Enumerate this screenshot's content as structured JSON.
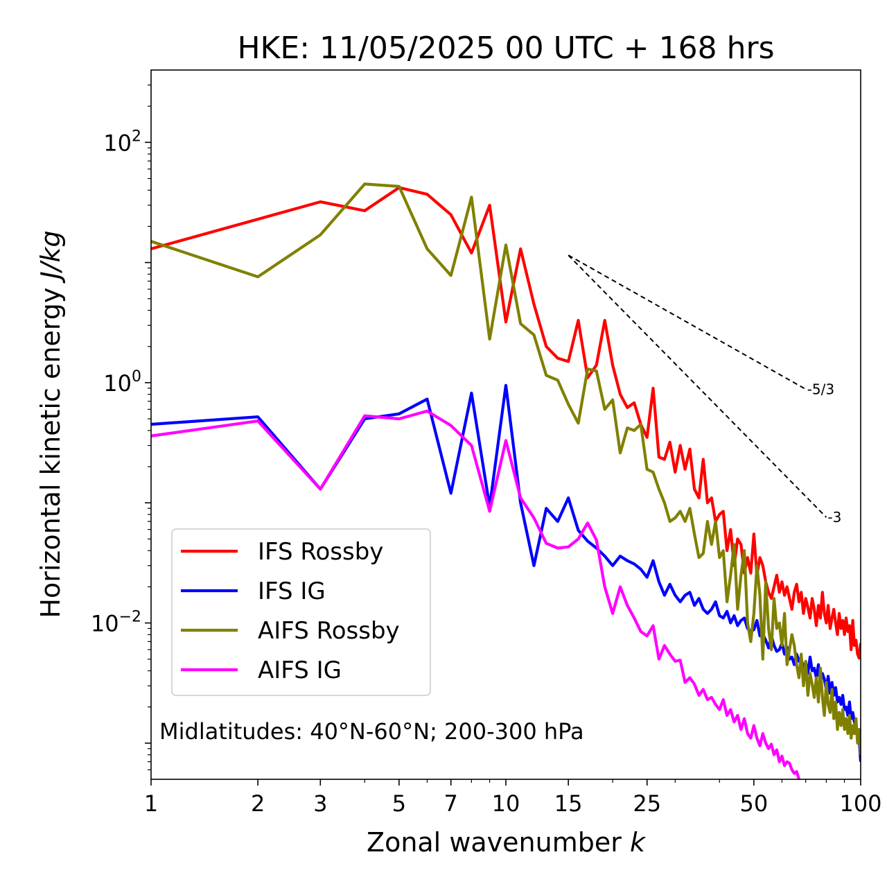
{
  "chart_data": {
    "type": "line",
    "title": "HKE: 11/05/2025 00 UTC + 168 hrs",
    "xlabel": "Zonal wavenumber k",
    "xlabel_main": "Zonal wavenumber ",
    "xlabel_var": "k",
    "ylabel": "Horizontal kinetic energy J/kg",
    "ylabel_main": "Horizontal kinetic energy ",
    "ylabel_var": "J/kg",
    "x_scale": "log",
    "y_scale": "log",
    "xlim": [
      1,
      100
    ],
    "ylim": [
      0.0005,
      400
    ],
    "x_ticks": [
      1,
      2,
      3,
      5,
      7,
      10,
      15,
      25,
      50,
      100
    ],
    "x_tick_labels": [
      "1",
      "2",
      "3",
      "5",
      "7",
      "10",
      "15",
      "25",
      "50",
      "100"
    ],
    "y_ticks": [
      {
        "value": 100,
        "base": "10",
        "exp": "2"
      },
      {
        "value": 1,
        "base": "10",
        "exp": "0"
      },
      {
        "value": 0.01,
        "base": "10",
        "exp": "−2"
      }
    ],
    "legend_position": "lower-left",
    "annotation": "Midlatitudes: 40°N-60°N; 200-300 hPa",
    "reference_slopes": [
      {
        "label": "-5/3",
        "slope": -1.6667,
        "x": [
          15,
          70
        ],
        "y0": 11.5
      },
      {
        "label": "-3",
        "slope": -3,
        "x": [
          15,
          80
        ],
        "y0": 11.5
      }
    ],
    "series": [
      {
        "name": "IFS Rossby",
        "color": "#ff0000",
        "y": [
          13,
          null,
          32,
          27,
          42,
          37,
          25,
          12,
          30,
          3.2,
          13,
          4.5,
          2,
          1.6,
          1.5,
          3.3,
          1.1,
          1.4,
          3.3,
          1.4,
          0.8,
          0.62,
          0.68,
          0.45,
          0.35,
          0.9,
          0.24,
          0.23,
          0.32,
          0.18,
          0.3,
          0.19,
          0.28,
          0.13,
          0.11,
          0.23,
          0.1,
          0.11,
          0.07,
          0.08,
          0.085,
          0.04,
          0.06,
          0.03,
          0.05,
          0.045,
          0.026,
          0.035,
          0.026,
          0.055,
          0.025,
          0.035,
          0.03,
          0.022,
          0.018,
          0.016,
          0.02,
          0.025,
          0.018,
          0.022,
          0.017,
          0.02,
          0.016,
          0.013,
          0.018,
          0.021,
          0.015,
          0.018,
          0.012,
          0.016,
          0.0135,
          0.011,
          0.016,
          0.013,
          0.0095,
          0.014,
          0.011,
          0.018,
          0.012,
          0.01,
          0.014,
          0.009,
          0.011,
          0.013,
          0.01,
          0.008,
          0.012,
          0.009,
          0.0105,
          0.008,
          0.011,
          0.0085,
          0.0095,
          0.006,
          0.0105,
          0.0065,
          0.0072,
          0.0055,
          0.0051,
          0.0068
        ]
      },
      {
        "name": "IFS IG",
        "color": "#0000ff",
        "y": [
          0.45,
          0.52,
          0.13,
          0.5,
          0.55,
          0.73,
          0.12,
          0.82,
          0.093,
          0.95,
          0.1,
          0.03,
          0.09,
          0.07,
          0.11,
          0.059,
          0.048,
          0.042,
          0.036,
          0.03,
          0.036,
          0.033,
          0.031,
          0.028,
          0.024,
          0.033,
          0.022,
          0.017,
          0.021,
          0.017,
          0.015,
          0.017,
          0.018,
          0.014,
          0.016,
          0.013,
          0.012,
          0.013,
          0.015,
          0.0115,
          0.011,
          0.0125,
          0.01,
          0.0115,
          0.0095,
          0.0105,
          0.011,
          0.009,
          0.0085,
          0.0088,
          0.0105,
          0.0078,
          0.008,
          0.0072,
          0.0062,
          0.0078,
          0.0065,
          0.0058,
          0.006,
          0.0068,
          0.0055,
          0.0063,
          0.005,
          0.0052,
          0.0045,
          0.0055,
          0.0048,
          0.005,
          0.0042,
          0.0047,
          0.0038,
          0.0052,
          0.004,
          0.0042,
          0.0035,
          0.0045,
          0.0032,
          0.0038,
          0.0034,
          0.0028,
          0.0036,
          0.0026,
          0.0032,
          0.0025,
          0.0029,
          0.0022,
          0.0024,
          0.0021,
          0.0025,
          0.0019,
          0.002,
          0.0017,
          0.0022,
          0.0016,
          0.0018,
          0.0015,
          0.0014,
          0.0012,
          0.0011,
          0.0007
        ]
      },
      {
        "name": "AIFS Rossby",
        "color": "#808000",
        "y": [
          15,
          7.6,
          17,
          45,
          43,
          13,
          7.8,
          35,
          2.3,
          14,
          3.1,
          2.5,
          1.15,
          1.05,
          0.66,
          0.46,
          1.3,
          1.25,
          0.6,
          0.72,
          0.26,
          0.42,
          0.4,
          0.45,
          0.19,
          0.18,
          0.13,
          0.1,
          0.07,
          0.075,
          0.085,
          0.07,
          0.09,
          0.055,
          0.035,
          0.038,
          0.07,
          0.045,
          0.07,
          0.035,
          0.04,
          0.015,
          0.025,
          0.045,
          0.013,
          0.025,
          0.04,
          0.01,
          0.007,
          0.012,
          0.03,
          0.017,
          0.005,
          0.022,
          0.009,
          0.006,
          0.016,
          0.009,
          0.01,
          0.0065,
          0.012,
          0.0045,
          0.006,
          0.008,
          0.0065,
          0.0045,
          0.0035,
          0.0055,
          0.003,
          0.0048,
          0.0025,
          0.0038,
          0.0031,
          0.0024,
          0.0035,
          0.0022,
          0.0042,
          0.0024,
          0.0017,
          0.0032,
          0.0021,
          0.0018,
          0.0028,
          0.0016,
          0.0022,
          0.0013,
          0.0018,
          0.0014,
          0.0019,
          0.0013,
          0.0016,
          0.0012,
          0.0017,
          0.0011,
          0.0014,
          0.0012,
          0.0016,
          0.001,
          0.0013,
          0.0008
        ]
      },
      {
        "name": "AIFS IG",
        "color": "#ff00ff",
        "y": [
          0.36,
          0.48,
          0.13,
          0.53,
          0.5,
          0.58,
          0.44,
          0.3,
          0.085,
          0.33,
          0.11,
          0.075,
          0.046,
          0.042,
          0.043,
          0.05,
          0.068,
          0.049,
          0.02,
          0.012,
          0.02,
          0.014,
          0.011,
          0.0085,
          0.0078,
          0.0095,
          0.005,
          0.0065,
          0.0055,
          0.0048,
          0.0049,
          0.0032,
          0.0035,
          0.0031,
          0.0025,
          0.0028,
          0.0023,
          0.0024,
          0.0021,
          0.0019,
          0.0023,
          0.0017,
          0.0019,
          0.0015,
          0.0017,
          0.0013,
          0.0016,
          0.0012,
          0.0011,
          0.0014,
          0.0011,
          0.00095,
          0.0012,
          0.001,
          0.0009,
          0.00098,
          0.0008,
          0.00088,
          0.0007,
          0.00078,
          0.00065,
          0.0007,
          0.00068,
          0.0006,
          0.00056,
          0.00058,
          0.0005
        ]
      }
    ]
  }
}
